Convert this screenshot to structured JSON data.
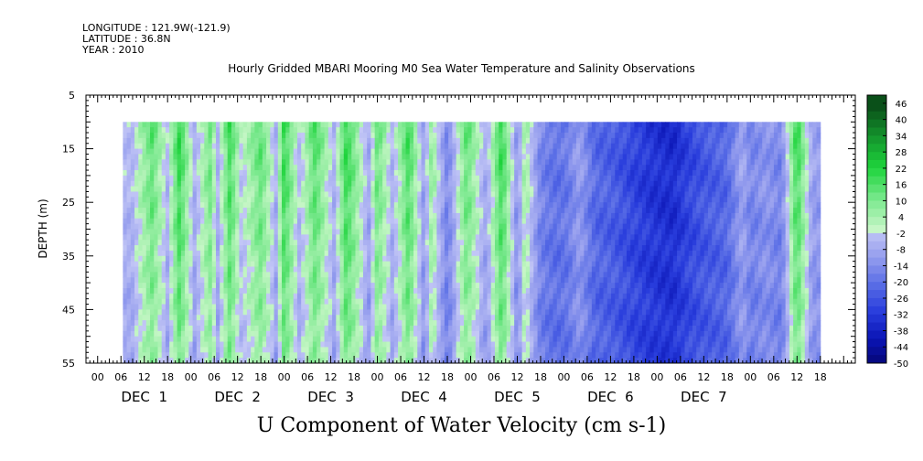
{
  "header": {
    "longitude": "LONGITUDE : 121.9W(-121.9)",
    "latitude": "LATITUDE : 36.8N",
    "year": "YEAR : 2010"
  },
  "chart_data": {
    "type": "heatmap",
    "title": "Hourly Gridded MBARI Mooring M0 Sea Water Temperature and Salinity Observations",
    "xlabel": "U Component of Water Velocity (cm s-1)",
    "ylabel": "DEPTH (m)",
    "ylim": [
      55,
      5
    ],
    "y_ticks": [
      5,
      15,
      25,
      35,
      45,
      55
    ],
    "x_hour_ticks": [
      "00",
      "06",
      "12",
      "18",
      "00",
      "06",
      "12",
      "18",
      "00",
      "06",
      "12",
      "18",
      "00",
      "06",
      "12",
      "18",
      "00",
      "06",
      "12",
      "18",
      "00",
      "06",
      "12",
      "18",
      "00",
      "06",
      "12",
      "18",
      "00",
      "06",
      "12",
      "18"
    ],
    "x_day_labels": [
      "DEC  1",
      "DEC  2",
      "DEC  3",
      "DEC  4",
      "DEC  5",
      "DEC  6",
      "DEC  7"
    ],
    "data_depth_range": [
      10,
      55
    ],
    "colorbar": {
      "labels": [
        "46",
        "40",
        "34",
        "28",
        "22",
        "16",
        "10",
        "4",
        "-2",
        "-8",
        "-14",
        "-20",
        "-26",
        "-32",
        "-38",
        "-44",
        "-50"
      ]
    },
    "profile": {
      "day_hours": [
        3,
        8,
        12,
        15,
        19,
        23,
        25,
        28,
        31,
        36,
        40,
        42,
        46,
        50,
        55,
        58,
        64,
        66,
        70,
        74,
        78,
        80,
        84,
        89,
        94,
        98,
        102,
        104,
        108,
        112,
        115,
        118,
        122,
        126,
        128,
        132,
        137,
        142,
        146,
        150,
        156,
        160,
        162,
        166,
        170,
        174,
        178
      ],
      "u_cm_s": [
        -2,
        16,
        -2,
        22,
        -4,
        14,
        -4,
        20,
        0,
        16,
        -4,
        22,
        -2,
        18,
        -4,
        22,
        -6,
        16,
        -4,
        20,
        -8,
        10,
        -14,
        16,
        -6,
        22,
        -10,
        8,
        -14,
        -18,
        -16,
        -8,
        -20,
        -22,
        -24,
        -28,
        -32,
        -34,
        -28,
        -24,
        -20,
        -6,
        -14,
        -10,
        -14,
        22,
        -8
      ]
    }
  }
}
